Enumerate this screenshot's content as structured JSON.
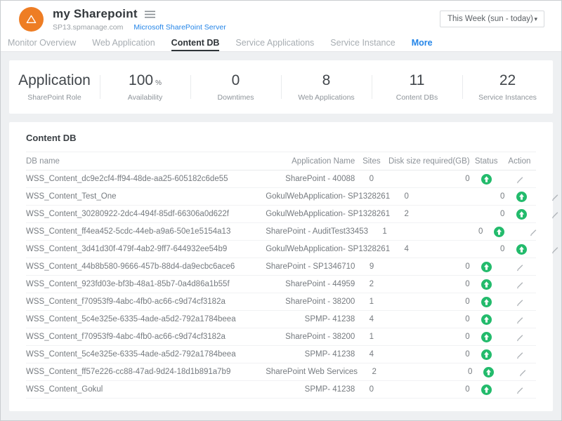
{
  "header": {
    "title": "my Sharepoint",
    "host": "SP13.spmanage.com",
    "server_link": "Microsoft SharePoint Server",
    "time_range": "This Week (sun - today)"
  },
  "tabs": [
    {
      "label": "Monitor Overview",
      "state": "normal"
    },
    {
      "label": "Web Application",
      "state": "normal"
    },
    {
      "label": "Content DB",
      "state": "active"
    },
    {
      "label": "Service Applications",
      "state": "normal"
    },
    {
      "label": "Service Instance",
      "state": "normal"
    },
    {
      "label": "More",
      "state": "accent"
    }
  ],
  "stats": [
    {
      "value": "Application",
      "suffix": "",
      "label": "SharePoint Role"
    },
    {
      "value": "100",
      "suffix": "%",
      "label": "Availability"
    },
    {
      "value": "0",
      "suffix": "",
      "label": "Downtimes"
    },
    {
      "value": "8",
      "suffix": "",
      "label": "Web Applications"
    },
    {
      "value": "11",
      "suffix": "",
      "label": "Content DBs"
    },
    {
      "value": "22",
      "suffix": "",
      "label": "Service Instances"
    }
  ],
  "table": {
    "section_title": "Content DB",
    "columns": [
      "DB name",
      "Application Name",
      "Sites",
      "Disk size required(GB)",
      "Status",
      "Action"
    ],
    "rows": [
      {
        "db": "WSS_Content_dc9e2cf4-ff94-48de-aa25-605182c6de55",
        "app": "SharePoint - 40088",
        "sites": "0",
        "disk": "0",
        "status": "up"
      },
      {
        "db": "WSS_Content_Test_One",
        "app": "GokulWebApplication- SP1328261",
        "sites": "0",
        "disk": "0",
        "status": "up"
      },
      {
        "db": "WSS_Content_30280922-2dc4-494f-85df-66306a0d622f",
        "app": "GokulWebApplication- SP1328261",
        "sites": "2",
        "disk": "0",
        "status": "up"
      },
      {
        "db": "WSS_Content_ff4ea452-5cdc-44eb-a9a6-50e1e5154a13",
        "app": "SharePoint - AuditTest33453",
        "sites": "1",
        "disk": "0",
        "status": "up"
      },
      {
        "db": "WSS_Content_3d41d30f-479f-4ab2-9ff7-644932ee54b9",
        "app": "GokulWebApplication- SP1328261",
        "sites": "4",
        "disk": "0",
        "status": "up"
      },
      {
        "db": "WSS_Content_44b8b580-9666-457b-88d4-da9ecbc6ace6",
        "app": "SharePoint - SP1346710",
        "sites": "9",
        "disk": "0",
        "status": "up"
      },
      {
        "db": "WSS_Content_923fd03e-bf3b-48a1-85b7-0a4d86a1b55f",
        "app": "SharePoint - 44959",
        "sites": "2",
        "disk": "0",
        "status": "up"
      },
      {
        "db": "WSS_Content_f70953f9-4abc-4fb0-ac66-c9d74cf3182a",
        "app": "SharePoint - 38200",
        "sites": "1",
        "disk": "0",
        "status": "up"
      },
      {
        "db": "WSS_Content_5c4e325e-6335-4ade-a5d2-792a1784beea",
        "app": "SPMP- 41238",
        "sites": "4",
        "disk": "0",
        "status": "up"
      },
      {
        "db": "WSS_Content_f70953f9-4abc-4fb0-ac66-c9d74cf3182a",
        "app": "SharePoint - 38200",
        "sites": "1",
        "disk": "0",
        "status": "up"
      },
      {
        "db": "WSS_Content_5c4e325e-6335-4ade-a5d2-792a1784beea",
        "app": "SPMP- 41238",
        "sites": "4",
        "disk": "0",
        "status": "up"
      },
      {
        "db": "WSS_Content_ff57e226-cc88-47ad-9d24-18d1b891a7b9",
        "app": "SharePoint Web Services",
        "sites": "2",
        "disk": "0",
        "status": "up"
      },
      {
        "db": "WSS_Content_Gokul",
        "app": "SPMP- 41238",
        "sites": "0",
        "disk": "0",
        "status": "up"
      }
    ]
  },
  "icons": {
    "logo": "warning-triangle-icon",
    "menu": "hamburger-menu-icon",
    "dropdown": "chevron-down-icon",
    "status": "status-up-arrow-icon",
    "action": "edit-pencil-icon"
  },
  "colors": {
    "brand-orange": "#ee7d24",
    "accent-blue": "#2485e8",
    "status-green": "#23bb6c",
    "page-bg": "#eef0f2",
    "active-tab": "#2f3438"
  }
}
